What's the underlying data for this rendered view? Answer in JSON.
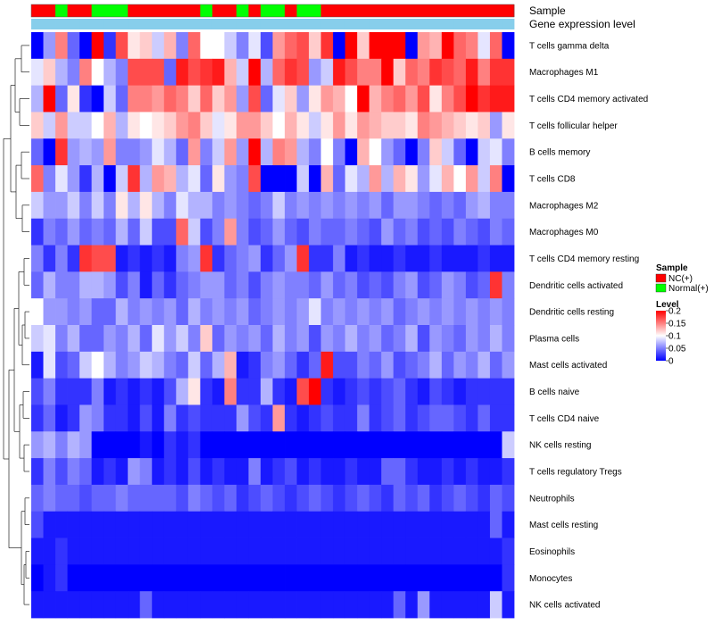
{
  "chart_data": {
    "type": "heatmap",
    "title": "",
    "annotations": {
      "sample": {
        "label": "Sample",
        "values": [
          "NC",
          "NC",
          "Normal",
          "NC",
          "NC",
          "Normal",
          "Normal",
          "Normal",
          "NC",
          "NC",
          "NC",
          "NC",
          "NC",
          "NC",
          "Normal",
          "NC",
          "NC",
          "Normal",
          "NC",
          "Normal",
          "Normal",
          "NC",
          "Normal",
          "Normal",
          "NC",
          "NC",
          "NC",
          "NC",
          "NC",
          "NC",
          "NC",
          "NC",
          "NC",
          "NC",
          "NC",
          "NC",
          "NC",
          "NC",
          "NC",
          "NC"
        ]
      },
      "gene_expression": {
        "label": "Gene expression level",
        "values": [
          "low",
          "low",
          "low",
          "low",
          "low",
          "low",
          "low",
          "low",
          "low",
          "low",
          "low",
          "low",
          "low",
          "low",
          "low",
          "low",
          "low",
          "low",
          "low",
          "low",
          "low",
          "low",
          "low",
          "low",
          "low",
          "low",
          "low",
          "low",
          "low",
          "low",
          "low",
          "low",
          "low",
          "low",
          "low",
          "low",
          "low",
          "low",
          "low",
          "low"
        ]
      }
    },
    "rows": [
      "T cells gamma delta",
      "Macrophages M1",
      "T cells CD4 memory activated",
      "T cells follicular helper",
      "B cells memory",
      "T cells CD8",
      "Macrophages M2",
      "Macrophages M0",
      "T cells CD4 memory resting",
      "Dendritic cells activated",
      "Dendritic cells resting",
      "Plasma cells",
      "Mast cells activated",
      "B cells naive",
      "T cells CD4 naive",
      "NK cells resting",
      "T cells regulatory  Tregs",
      "Neutrophils",
      "Mast cells resting",
      "Eosinophils",
      "Monocytes",
      "NK cells activated"
    ],
    "values": [
      [
        0,
        0.06,
        0.15,
        0.04,
        0,
        0.2,
        0.02,
        0.17,
        0.11,
        0.12,
        0.08,
        0.13,
        0.05,
        0.16,
        0.1,
        0.1,
        0.08,
        0.05,
        0.09,
        0.03,
        0.14,
        0.16,
        0.17,
        0.12,
        0.18,
        0,
        0.2,
        0.12,
        0.2,
        0.2,
        0.2,
        0,
        0.14,
        0.13,
        0.2,
        0.16,
        0.15,
        0.09,
        0.16,
        0
      ],
      [
        0.09,
        0.12,
        0.07,
        0.05,
        0.15,
        0.1,
        0.07,
        0.05,
        0.17,
        0.17,
        0.17,
        0.04,
        0.19,
        0.17,
        0.18,
        0.19,
        0.13,
        0.08,
        0.2,
        0.07,
        0.16,
        0.18,
        0.17,
        0.06,
        0.08,
        0.19,
        0.17,
        0.15,
        0.15,
        0.2,
        0.12,
        0.16,
        0.15,
        0.18,
        0.17,
        0.16,
        0.19,
        0.15,
        0.18,
        0.18
      ],
      [
        0.07,
        0.2,
        0.04,
        0.11,
        0.02,
        0,
        0.08,
        0.04,
        0.15,
        0.15,
        0.14,
        0.16,
        0.15,
        0.12,
        0.16,
        0.12,
        0.14,
        0.06,
        0.17,
        0.04,
        0.09,
        0.12,
        0.06,
        0.11,
        0.14,
        0.13,
        0.1,
        0.2,
        0.13,
        0.15,
        0.16,
        0.14,
        0.17,
        0.11,
        0.15,
        0.17,
        0.2,
        0.18,
        0.19,
        0.19
      ],
      [
        0.12,
        0.08,
        0.14,
        0.08,
        0.08,
        0.1,
        0.13,
        0.07,
        0.11,
        0.1,
        0.11,
        0.12,
        0.14,
        0.15,
        0.12,
        0.09,
        0.11,
        0.14,
        0.14,
        0.12,
        0.1,
        0.13,
        0.11,
        0.08,
        0.11,
        0.14,
        0.11,
        0.14,
        0.13,
        0.12,
        0.12,
        0.11,
        0.15,
        0.14,
        0.13,
        0.12,
        0.11,
        0.12,
        0.06,
        0.11
      ],
      [
        0.04,
        0,
        0.18,
        0.06,
        0.07,
        0.06,
        0.14,
        0.05,
        0.05,
        0.06,
        0.09,
        0.07,
        0.04,
        0.14,
        0.05,
        0.08,
        0.14,
        0.06,
        0.2,
        0.07,
        0.15,
        0.14,
        0.07,
        0.05,
        0.1,
        0.05,
        0,
        0.13,
        0.1,
        0.06,
        0.04,
        0,
        0.05,
        0.12,
        0.08,
        0.04,
        0,
        0.08,
        0.09,
        0.05
      ],
      [
        0.16,
        0.05,
        0.09,
        0.06,
        0.02,
        0.07,
        0.0,
        0.08,
        0.18,
        0.07,
        0.14,
        0.13,
        0.07,
        0.09,
        0.04,
        0.11,
        0.06,
        0.05,
        0.17,
        0,
        0,
        0,
        0.08,
        0.0,
        0.13,
        0.04,
        0.09,
        0.07,
        0.14,
        0.07,
        0.13,
        0.11,
        0.06,
        0.09,
        0.13,
        0.1,
        0.14,
        0.08,
        0.15,
        0
      ],
      [
        0.08,
        0.06,
        0.06,
        0.08,
        0.05,
        0.08,
        0.05,
        0.11,
        0.07,
        0.11,
        0.07,
        0.05,
        0.09,
        0.07,
        0.07,
        0.05,
        0.06,
        0.05,
        0.04,
        0.05,
        0.08,
        0.05,
        0.06,
        0.05,
        0.06,
        0.05,
        0.06,
        0.05,
        0.06,
        0.04,
        0.06,
        0.06,
        0.05,
        0.04,
        0.05,
        0.04,
        0.06,
        0.07,
        0.05,
        0.05
      ],
      [
        0.02,
        0.05,
        0.04,
        0.06,
        0.04,
        0.05,
        0.04,
        0.07,
        0.04,
        0.08,
        0.03,
        0.03,
        0.16,
        0.08,
        0.03,
        0.05,
        0.14,
        0.05,
        0.03,
        0.04,
        0.06,
        0.04,
        0.03,
        0.05,
        0.04,
        0.04,
        0.05,
        0.04,
        0.03,
        0.06,
        0.04,
        0.05,
        0.03,
        0.04,
        0.03,
        0.05,
        0.04,
        0.03,
        0.05,
        0.04
      ],
      [
        0.05,
        0.02,
        0.05,
        0.02,
        0.18,
        0.17,
        0.17,
        0.01,
        0.02,
        0.01,
        0.02,
        0.01,
        0.05,
        0.06,
        0.18,
        0.02,
        0.04,
        0.05,
        0.06,
        0.02,
        0.04,
        0.06,
        0.18,
        0.02,
        0.02,
        0.05,
        0.01,
        0.02,
        0.01,
        0.01,
        0.02,
        0.01,
        0.01,
        0.02,
        0.01,
        0.01,
        0.01,
        0.02,
        0.01,
        0.01
      ],
      [
        0.04,
        0.07,
        0.05,
        0.05,
        0.07,
        0.07,
        0.06,
        0.03,
        0.05,
        0.01,
        0.04,
        0.02,
        0.04,
        0.05,
        0.06,
        0.06,
        0.04,
        0.05,
        0.03,
        0.05,
        0.06,
        0.05,
        0.05,
        0.04,
        0.06,
        0.04,
        0.05,
        0.03,
        0.04,
        0.03,
        0.05,
        0.06,
        0.03,
        0.04,
        0.06,
        0.05,
        0.03,
        0.04,
        0.18,
        0.05
      ],
      [
        0.1,
        0.06,
        0.06,
        0.05,
        0.06,
        0.04,
        0.04,
        0.07,
        0.05,
        0.06,
        0.05,
        0.06,
        0.04,
        0.07,
        0.05,
        0.06,
        0.05,
        0.06,
        0.04,
        0.05,
        0.06,
        0.05,
        0.06,
        0.09,
        0.05,
        0.06,
        0.05,
        0.06,
        0.05,
        0.06,
        0.04,
        0.05,
        0.06,
        0.05,
        0.06,
        0.05,
        0.06,
        0.05,
        0.06,
        0.05
      ],
      [
        0.08,
        0.09,
        0.05,
        0.07,
        0.04,
        0.04,
        0.06,
        0.05,
        0.07,
        0.04,
        0.09,
        0.06,
        0.08,
        0.05,
        0.12,
        0.04,
        0.06,
        0.05,
        0.06,
        0.04,
        0.07,
        0.05,
        0.06,
        0.03,
        0.06,
        0.05,
        0.07,
        0.05,
        0.06,
        0.04,
        0.05,
        0.07,
        0.03,
        0.06,
        0.05,
        0.04,
        0.06,
        0.05,
        0.07,
        0.05
      ],
      [
        0.01,
        0.09,
        0.03,
        0.04,
        0.08,
        0.1,
        0.07,
        0.05,
        0.06,
        0.08,
        0.07,
        0.05,
        0.04,
        0.08,
        0.04,
        0.07,
        0.13,
        0.01,
        0.02,
        0.05,
        0.06,
        0.04,
        0.02,
        0.04,
        0.19,
        0.03,
        0.03,
        0.05,
        0.04,
        0.06,
        0.03,
        0.04,
        0.05,
        0.07,
        0.04,
        0.06,
        0.05,
        0.07,
        0.04,
        0.06
      ],
      [
        0.03,
        0.05,
        0.02,
        0.02,
        0.02,
        0.05,
        0.01,
        0.02,
        0.01,
        0.02,
        0.01,
        0.03,
        0.07,
        0.11,
        0.02,
        0.01,
        0.15,
        0.02,
        0.02,
        0.07,
        0.02,
        0.01,
        0.17,
        0.2,
        0.02,
        0.01,
        0.02,
        0.03,
        0.02,
        0.03,
        0.04,
        0.02,
        0.01,
        0.03,
        0.02,
        0.01,
        0.02,
        0.02,
        0.02,
        0.02
      ],
      [
        0.02,
        0.04,
        0.01,
        0.02,
        0.06,
        0.05,
        0.02,
        0.02,
        0.01,
        0.03,
        0.01,
        0.05,
        0.02,
        0.03,
        0.02,
        0.02,
        0.02,
        0.06,
        0.03,
        0.02,
        0.14,
        0.02,
        0.01,
        0.02,
        0.03,
        0.02,
        0.02,
        0.05,
        0.02,
        0.03,
        0.04,
        0.02,
        0.03,
        0.04,
        0.04,
        0.03,
        0.02,
        0.04,
        0.02,
        0.02
      ],
      [
        0.06,
        0.07,
        0.05,
        0.07,
        0.06,
        0,
        0,
        0,
        0,
        0.01,
        0,
        0.02,
        0.01,
        0.02,
        0,
        0,
        0,
        0,
        0,
        0,
        0,
        0,
        0,
        0,
        0,
        0,
        0,
        0,
        0,
        0,
        0,
        0,
        0,
        0,
        0,
        0,
        0,
        0,
        0,
        0.08
      ],
      [
        0.02,
        0.05,
        0.03,
        0.05,
        0.04,
        0.01,
        0.02,
        0.01,
        0.06,
        0.05,
        0.01,
        0.02,
        0.01,
        0.03,
        0.01,
        0.02,
        0.01,
        0.01,
        0.05,
        0.01,
        0.02,
        0.03,
        0.01,
        0.02,
        0.01,
        0.01,
        0.02,
        0.01,
        0.01,
        0.04,
        0.04,
        0.02,
        0.01,
        0.01,
        0.02,
        0.01,
        0.02,
        0.01,
        0.01,
        0.02
      ],
      [
        0.04,
        0.05,
        0.04,
        0.04,
        0.03,
        0.04,
        0.04,
        0.05,
        0.04,
        0.04,
        0.04,
        0.04,
        0.03,
        0.05,
        0.04,
        0.03,
        0.04,
        0.02,
        0.03,
        0.04,
        0.03,
        0.02,
        0.03,
        0.04,
        0.03,
        0.02,
        0.03,
        0.04,
        0.03,
        0.02,
        0.04,
        0.03,
        0.04,
        0.02,
        0.03,
        0.04,
        0.03,
        0.02,
        0.04,
        0.03
      ],
      [
        0.03,
        0.01,
        0.01,
        0.01,
        0.01,
        0.01,
        0.01,
        0.01,
        0.01,
        0.01,
        0.01,
        0.01,
        0.01,
        0.01,
        0.01,
        0.01,
        0.01,
        0.01,
        0.01,
        0.01,
        0.01,
        0.01,
        0.01,
        0.01,
        0.01,
        0.01,
        0.01,
        0.01,
        0.01,
        0.01,
        0.01,
        0.01,
        0.01,
        0.01,
        0.01,
        0.01,
        0.01,
        0.01,
        0.04,
        0.01
      ],
      [
        0.01,
        0.01,
        0.02,
        0.01,
        0.01,
        0.01,
        0.01,
        0.01,
        0.01,
        0.01,
        0.01,
        0.01,
        0.01,
        0.01,
        0.01,
        0.01,
        0.01,
        0.01,
        0.01,
        0.01,
        0.01,
        0.01,
        0.01,
        0.01,
        0.01,
        0.01,
        0.01,
        0.01,
        0.01,
        0.01,
        0.01,
        0.01,
        0.01,
        0.01,
        0.01,
        0.01,
        0.01,
        0.01,
        0.01,
        0.02
      ],
      [
        0,
        0.01,
        0.02,
        0,
        0,
        0,
        0,
        0,
        0,
        0,
        0,
        0,
        0,
        0,
        0,
        0,
        0,
        0,
        0,
        0,
        0,
        0,
        0,
        0,
        0,
        0,
        0,
        0,
        0,
        0,
        0,
        0,
        0,
        0,
        0,
        0,
        0,
        0,
        0,
        0.02
      ],
      [
        0.01,
        0.01,
        0.01,
        0.01,
        0.01,
        0.01,
        0.01,
        0.01,
        0.01,
        0.04,
        0.01,
        0.01,
        0.01,
        0.01,
        0.01,
        0.01,
        0.01,
        0.01,
        0.01,
        0.01,
        0.01,
        0.01,
        0.01,
        0.01,
        0.01,
        0.01,
        0.01,
        0.01,
        0.01,
        0.01,
        0.04,
        0.01,
        0.06,
        0.01,
        0.01,
        0.01,
        0.01,
        0.01,
        0.08,
        0.01
      ]
    ],
    "color_scale": {
      "min": 0,
      "mid": 0.1,
      "max": 0.2,
      "low_color": "#0000ff",
      "mid_color": "#ffffff",
      "high_color": "#ff0000"
    },
    "legend": {
      "sample": {
        "title": "Sample",
        "entries": [
          {
            "key": "NC",
            "label": "NC(+)",
            "color": "#ff0000"
          },
          {
            "key": "Normal",
            "label": "Normal(+)",
            "color": "#00ff00"
          }
        ]
      },
      "level": {
        "title": "Level",
        "ticks": [
          {
            "value": 0.2,
            "label": "0.2"
          },
          {
            "value": 0.15,
            "label": "0.15"
          },
          {
            "value": 0.1,
            "label": "0.1"
          },
          {
            "value": 0.05,
            "label": "0.05"
          },
          {
            "value": 0,
            "label": "0"
          }
        ]
      }
    },
    "gene_expression_color": "#87ceeb"
  }
}
